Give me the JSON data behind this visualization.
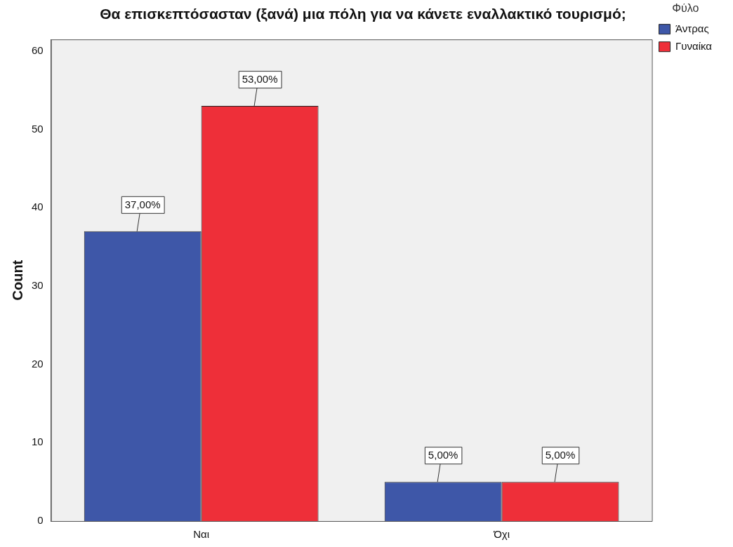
{
  "chart_data": {
    "type": "bar",
    "title": "Θα επισκεπτόσασταν (ξανά) μια πόλη για να κάνετε εναλλακτικό τουρισμό;",
    "ylabel": "Count",
    "legend_title": "Φύλο",
    "categories": [
      "Ναι",
      "Όχι"
    ],
    "series": [
      {
        "name": "Άντρας",
        "color": "#3e57a8",
        "values": [
          37,
          5
        ],
        "value_labels": [
          "37,00%",
          "5,00%"
        ]
      },
      {
        "name": "Γυναίκα",
        "color": "#ee2f39",
        "values": [
          53,
          5
        ],
        "value_labels": [
          "53,00%",
          "5,00%"
        ]
      }
    ],
    "ylim": [
      0,
      61.5
    ],
    "yticks": [
      0,
      10,
      20,
      30,
      40,
      50,
      60
    ],
    "grid": false,
    "legend": "top right"
  }
}
